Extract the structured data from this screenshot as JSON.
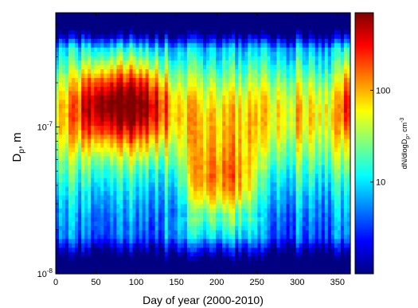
{
  "chart_data": {
    "type": "heatmap",
    "xlabel": "Day of year (2000-2010)",
    "ylabel_main": "D",
    "ylabel_sub": "p",
    "ylabel_suffix": ", m",
    "xlim": [
      0,
      366
    ],
    "x_ticks": [
      0,
      50,
      100,
      150,
      200,
      250,
      300,
      350
    ],
    "x_tick_labels": [
      "0",
      "50",
      "100",
      "150",
      "200",
      "250",
      "300",
      "350"
    ],
    "y_scale": "log",
    "ylim": [
      1e-08,
      6e-07
    ],
    "y_ticks": [
      1e-08,
      1e-07
    ],
    "y_tick_labels": [
      {
        "base": "10",
        "exp": "-8"
      },
      {
        "base": "10",
        "exp": "-7"
      }
    ],
    "colorbar": {
      "label_main": "dN/dlogD",
      "label_sub": "p",
      "label_suffix": ", cm",
      "label_sup": "-3",
      "scale": "log",
      "range": [
        1,
        700
      ],
      "ticks": [
        10,
        100
      ],
      "tick_labels": [
        "10",
        "100"
      ],
      "colormap": "jet"
    },
    "features": [
      {
        "x_range": [
          25,
          140
        ],
        "y_center": 1.5e-07,
        "peak_value": 500
      },
      {
        "x_range": [
          160,
          250
        ],
        "y_center": 4e-08,
        "peak_value": 400
      },
      {
        "x_range": [
          355,
          366
        ],
        "y_center": 1.7e-07,
        "peak_value": 150
      }
    ]
  }
}
